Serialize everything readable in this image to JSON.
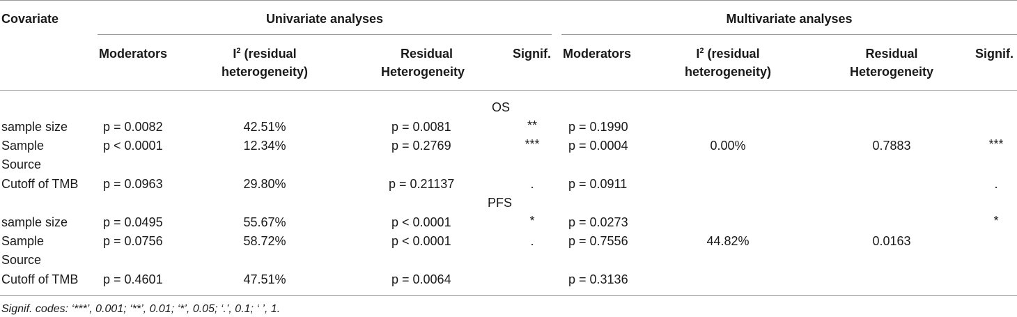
{
  "header": {
    "covariate": "Covariate",
    "univariate": "Univariate analyses",
    "multivariate": "Multivariate analyses",
    "moderators": "Moderators",
    "i2_main": "I",
    "i2_sup": "2",
    "i2_rest": " (residual",
    "i2_line2": "heterogeneity)",
    "residual_line1": "Residual",
    "residual_line2": "Heterogeneity",
    "signif": "Signif."
  },
  "sections": [
    {
      "label": "OS",
      "rows": [
        {
          "covariate": "sample size",
          "u_mod": "p = 0.0082",
          "u_i2": "42.51%",
          "u_res": "p = 0.0081",
          "u_sig": "**",
          "m_mod": "p = 0.1990"
        },
        {
          "covariate_l1": "Sample",
          "covariate_l2": "Source",
          "u_mod": "p < 0.0001",
          "u_i2": "12.34%",
          "u_res": "p = 0.2769",
          "u_sig": "***",
          "m_mod": "p = 0.0004"
        },
        {
          "covariate": "Cutoff of TMB",
          "u_mod": "p = 0.0963",
          "u_i2": "29.80%",
          "u_res": "p = 0.21137",
          "u_sig": ".",
          "m_mod": "p = 0.0911"
        }
      ],
      "m_i2": "0.00%",
      "m_res": "0.7883",
      "m_sig_a": "***",
      "m_sig_b": "."
    },
    {
      "label": "PFS",
      "rows": [
        {
          "covariate": "sample size",
          "u_mod": "p = 0.0495",
          "u_i2": "55.67%",
          "u_res": "p < 0.0001",
          "u_sig": "*",
          "m_mod": "p = 0.0273"
        },
        {
          "covariate_l1": "Sample",
          "covariate_l2": "Source",
          "u_mod": "p = 0.0756",
          "u_i2": "58.72%",
          "u_res": "p < 0.0001",
          "u_sig": ".",
          "m_mod": "p = 0.7556"
        },
        {
          "covariate": "Cutoff of TMB",
          "u_mod": "p = 0.4601",
          "u_i2": "47.51%",
          "u_res": "p = 0.0064",
          "u_sig": "",
          "m_mod": "p = 0.3136"
        }
      ],
      "m_i2": "44.82%",
      "m_res": "0.0163",
      "m_sig_a": "*"
    }
  ],
  "footnote": "Signif. codes: ‘***’, 0.001; ‘**’, 0.01; ‘*’, 0.05; ‘.’, 0.1; ‘ ’, 1."
}
